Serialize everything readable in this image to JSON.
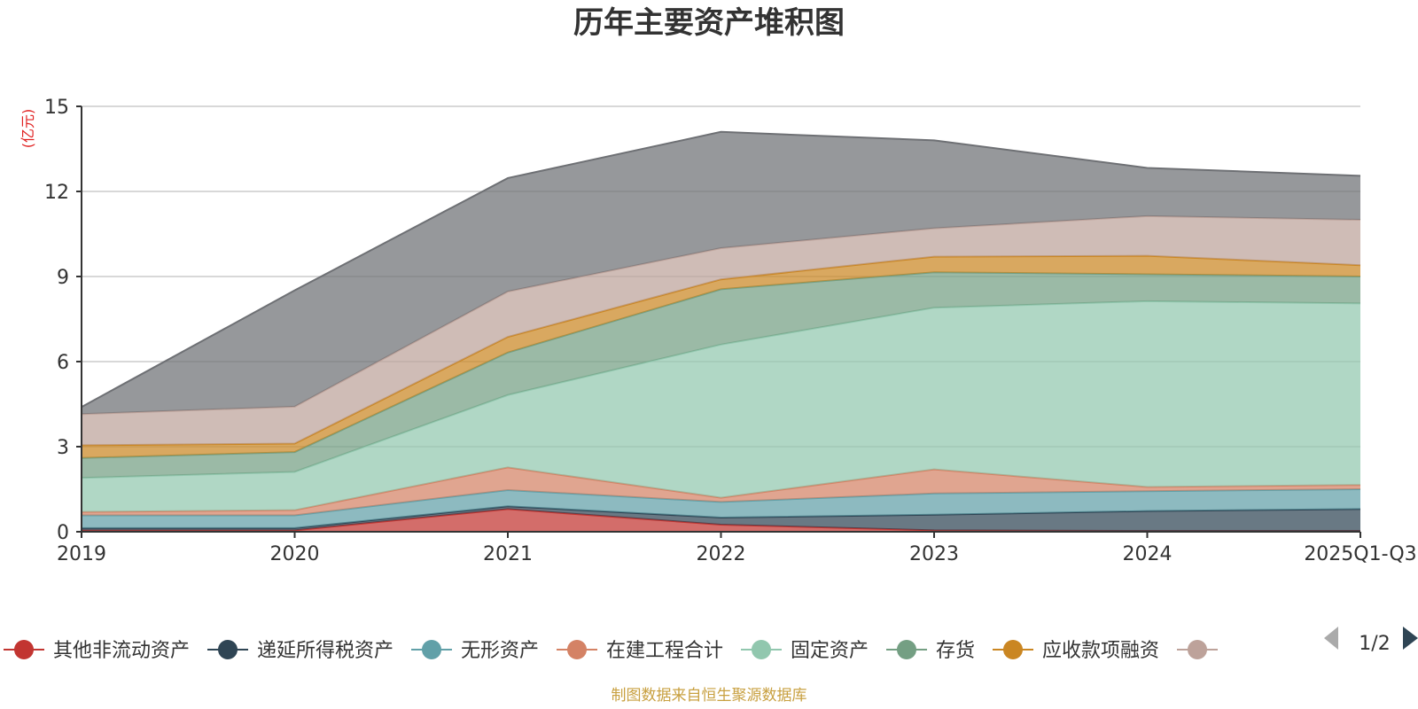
{
  "chart_data": {
    "type": "area",
    "stacked": true,
    "title": "历年主要资产堆积图",
    "ylabel": "(亿元)",
    "xlabel": "",
    "categories": [
      "2019",
      "2020",
      "2021",
      "2022",
      "2023",
      "2024",
      "2025Q1-Q3"
    ],
    "ylim": [
      0,
      15
    ],
    "yticks": [
      0,
      3,
      6,
      9,
      12,
      15
    ],
    "grid": true,
    "series": [
      {
        "name": "其他非流动资产",
        "color": "#c23531",
        "values": [
          0.05,
          0.05,
          0.8,
          0.25,
          0.05,
          0.03,
          0.03
        ]
      },
      {
        "name": "递延所得税资产",
        "color": "#2f4554",
        "values": [
          0.08,
          0.08,
          0.1,
          0.25,
          0.55,
          0.7,
          0.77
        ]
      },
      {
        "name": "无形资产",
        "color": "#61a0a8",
        "values": [
          0.45,
          0.45,
          0.57,
          0.55,
          0.75,
          0.7,
          0.7
        ]
      },
      {
        "name": "在建工程合计",
        "color": "#d48265",
        "values": [
          0.12,
          0.18,
          0.8,
          0.15,
          0.85,
          0.15,
          0.15
        ]
      },
      {
        "name": "固定资产",
        "color": "#91c7ae",
        "values": [
          1.2,
          1.35,
          2.55,
          5.4,
          5.7,
          6.55,
          6.4
        ]
      },
      {
        "name": "存货",
        "color": "#749f83",
        "values": [
          0.7,
          0.7,
          1.5,
          1.95,
          1.25,
          0.95,
          0.95
        ]
      },
      {
        "name": "应收款项融资",
        "color": "#ca8622",
        "values": [
          0.45,
          0.3,
          0.55,
          0.35,
          0.55,
          0.65,
          0.4
        ]
      },
      {
        "name": "",
        "color": "#bda29a",
        "values": [
          1.1,
          1.3,
          1.6,
          1.1,
          1.0,
          1.4,
          1.6
        ]
      },
      {
        "name": "",
        "color": "#6e7074",
        "values": [
          0.25,
          4.1,
          4.0,
          4.1,
          3.1,
          1.7,
          1.55
        ]
      }
    ]
  },
  "legend": {
    "items": [
      {
        "label": "其他非流动资产",
        "color": "#c23531"
      },
      {
        "label": "递延所得税资产",
        "color": "#2f4554"
      },
      {
        "label": "无形资产",
        "color": "#61a0a8"
      },
      {
        "label": "在建工程合计",
        "color": "#d48265"
      },
      {
        "label": "固定资产",
        "color": "#91c7ae"
      },
      {
        "label": "存货",
        "color": "#749f83"
      },
      {
        "label": "应收款项融资",
        "color": "#ca8622"
      },
      {
        "label": "",
        "color": "#bda29a"
      }
    ],
    "page_indicator": "1/2"
  },
  "footer": {
    "source": "制图数据来自恒生聚源数据库"
  }
}
